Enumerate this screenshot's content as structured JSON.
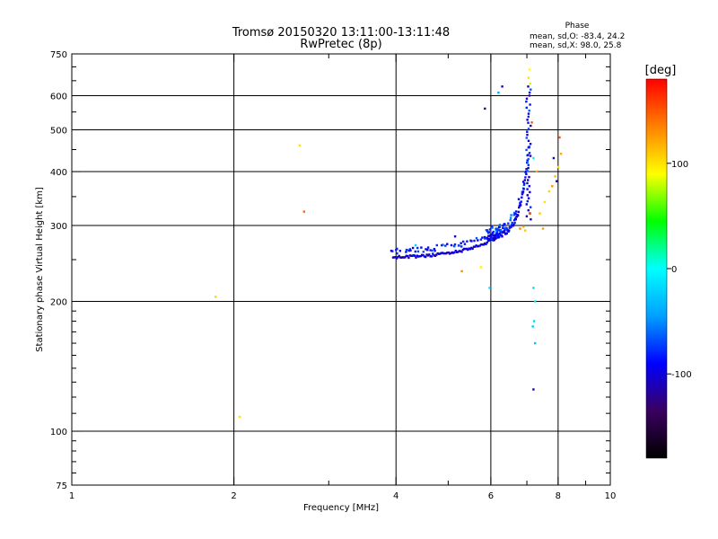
{
  "header": {
    "title": "Tromsø 20150320 13:11:00-13:11:48",
    "subtitle": "RwPretec (8p)",
    "phase_title": "Phase",
    "phase_o": "mean, sd,O: -83.4, 24.2",
    "phase_x": "mean, sd,X:  98.0, 25.8"
  },
  "chart_data": {
    "type": "scatter",
    "xlabel": "Frequency [MHz]",
    "ylabel": "Stationary phase Virtual Height [km]",
    "xscale": "log",
    "yscale": "log",
    "xlim": [
      1,
      10
    ],
    "ylim": [
      75,
      750
    ],
    "grid": true,
    "xticks": [
      {
        "value": 1,
        "label": "1"
      },
      {
        "value": 2,
        "label": "2"
      },
      {
        "value": 4,
        "label": "4"
      },
      {
        "value": 6,
        "label": "6"
      },
      {
        "value": 8,
        "label": "8"
      },
      {
        "value": 10,
        "label": "10"
      }
    ],
    "x_gridlines": [
      2,
      4,
      6,
      8
    ],
    "xminor": [
      3,
      5,
      7,
      9
    ],
    "yticks": [
      {
        "value": 75,
        "label": "75"
      },
      {
        "value": 100,
        "label": "100"
      },
      {
        "value": 200,
        "label": "200"
      },
      {
        "value": 300,
        "label": "300"
      },
      {
        "value": 400,
        "label": "400"
      },
      {
        "value": 500,
        "label": "500"
      },
      {
        "value": 600,
        "label": "600"
      },
      {
        "value": 750,
        "label": "750"
      }
    ],
    "y_gridlines": [
      100,
      200,
      300,
      400,
      500,
      600
    ],
    "yminor": [
      80,
      85,
      90,
      95,
      110,
      120,
      130,
      140,
      150,
      160,
      170,
      180,
      190,
      250,
      350,
      450,
      550,
      650,
      700
    ],
    "colorbar": {
      "label": "[deg]",
      "range": [
        -180,
        180
      ],
      "ticks": [
        {
          "value": 100,
          "label": "100"
        },
        {
          "value": 0,
          "label": "0"
        },
        {
          "value": -100,
          "label": "-100"
        }
      ],
      "stops": [
        "#000000",
        "#3a0060",
        "#0000ff",
        "#00a0ff",
        "#00ffff",
        "#00ff00",
        "#ffff00",
        "#ff8000",
        "#ff0000"
      ]
    },
    "trace_o": {
      "start": [
        3.95,
        253
      ],
      "end": [
        6.25,
        285
      ],
      "curv": 3,
      "count": 90,
      "jitter": 0.006,
      "phase": -100
    },
    "trace_x": {
      "start": [
        5.9,
        282
      ],
      "end": [
        7.05,
        450
      ],
      "curv": 5,
      "count": 80,
      "jitter": 0.012,
      "phase": -95
    },
    "column": {
      "x": 7.05,
      "ylow": 310,
      "yhigh": 630,
      "count": 45,
      "phase": -90
    },
    "points": [
      {
        "x": 1.85,
        "y": 205,
        "phase": 105
      },
      {
        "x": 2.05,
        "y": 108,
        "phase": 100
      },
      {
        "x": 2.65,
        "y": 460,
        "phase": 100
      },
      {
        "x": 2.7,
        "y": 323,
        "phase": 145
      },
      {
        "x": 3.92,
        "y": 262,
        "phase": -105
      },
      {
        "x": 4.35,
        "y": 270,
        "phase": -20
      },
      {
        "x": 5.3,
        "y": 235,
        "phase": 130
      },
      {
        "x": 5.15,
        "y": 283,
        "phase": -110
      },
      {
        "x": 5.75,
        "y": 240,
        "phase": 95
      },
      {
        "x": 5.85,
        "y": 560,
        "phase": -120
      },
      {
        "x": 5.97,
        "y": 215,
        "phase": -20
      },
      {
        "x": 6.2,
        "y": 610,
        "phase": -40
      },
      {
        "x": 6.3,
        "y": 630,
        "phase": -110
      },
      {
        "x": 6.8,
        "y": 295,
        "phase": 135
      },
      {
        "x": 6.9,
        "y": 298,
        "phase": 120
      },
      {
        "x": 6.95,
        "y": 292,
        "phase": 110
      },
      {
        "x": 7.1,
        "y": 320,
        "phase": 150
      },
      {
        "x": 7.2,
        "y": 215,
        "phase": -15
      },
      {
        "x": 7.25,
        "y": 200,
        "phase": -10
      },
      {
        "x": 7.22,
        "y": 180,
        "phase": -20
      },
      {
        "x": 7.18,
        "y": 175,
        "phase": -25
      },
      {
        "x": 7.25,
        "y": 160,
        "phase": -30
      },
      {
        "x": 7.2,
        "y": 125,
        "phase": -110
      },
      {
        "x": 7.05,
        "y": 660,
        "phase": 100
      },
      {
        "x": 7.08,
        "y": 690,
        "phase": 90
      },
      {
        "x": 7.1,
        "y": 640,
        "phase": 80
      },
      {
        "x": 7.15,
        "y": 520,
        "phase": 150
      },
      {
        "x": 7.2,
        "y": 430,
        "phase": 10
      },
      {
        "x": 7.3,
        "y": 400,
        "phase": 120
      },
      {
        "x": 7.4,
        "y": 320,
        "phase": 110
      },
      {
        "x": 7.5,
        "y": 295,
        "phase": 125
      },
      {
        "x": 7.55,
        "y": 340,
        "phase": 100
      },
      {
        "x": 7.7,
        "y": 360,
        "phase": 105
      },
      {
        "x": 7.8,
        "y": 370,
        "phase": 130
      },
      {
        "x": 7.85,
        "y": 430,
        "phase": -110
      },
      {
        "x": 7.9,
        "y": 390,
        "phase": 115
      },
      {
        "x": 8.0,
        "y": 410,
        "phase": 100
      },
      {
        "x": 8.05,
        "y": 480,
        "phase": 150
      },
      {
        "x": 8.1,
        "y": 440,
        "phase": 120
      },
      {
        "x": 7.95,
        "y": 380,
        "phase": -115
      }
    ]
  }
}
